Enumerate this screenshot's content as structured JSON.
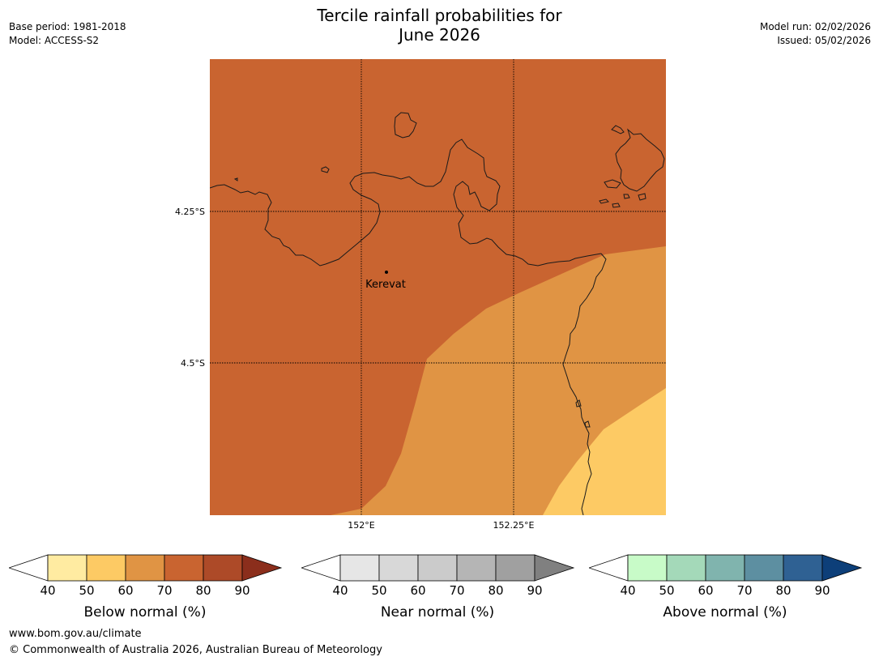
{
  "header": {
    "title_line1": "Tercile rainfall probabilities for",
    "title_line2": "June 2026",
    "base_period": "Base period: 1981-2018",
    "model": "Model: ACCESS-S2",
    "model_run": "Model run: 02/02/2026",
    "issued": "Issued: 05/02/2026"
  },
  "map": {
    "lat_labels": [
      "4.25°S",
      "4.5°S"
    ],
    "lon_labels": [
      "152°E",
      "152.25°E"
    ],
    "place": "Kerevat",
    "colors": {
      "below_70_80": "#c96430",
      "below_60_70": "#e09444",
      "below_50_60": "#fdca64",
      "coast": "#1a1a1a"
    }
  },
  "legends": [
    {
      "label": "Below normal (%)",
      "ticks": [
        "40",
        "50",
        "60",
        "70",
        "80",
        "90"
      ],
      "colors": [
        "#ffeba1",
        "#fdca64",
        "#e09444",
        "#c96430",
        "#ad4a28",
        "#8b2e1c"
      ]
    },
    {
      "label": "Near normal (%)",
      "ticks": [
        "40",
        "50",
        "60",
        "70",
        "80",
        "90"
      ],
      "colors": [
        "#e6e6e6",
        "#d8d8d8",
        "#cbcbcb",
        "#b5b5b5",
        "#a0a0a0",
        "#808080"
      ]
    },
    {
      "label": "Above normal (%)",
      "ticks": [
        "40",
        "50",
        "60",
        "70",
        "80",
        "90"
      ],
      "colors": [
        "#c8fbc8",
        "#a4d9b9",
        "#80b4ae",
        "#5d8fa1",
        "#2f6193",
        "#0d3f79"
      ]
    }
  ],
  "footer": {
    "url": "www.bom.gov.au/climate",
    "copyright": "© Commonwealth of Australia 2026, Australian Bureau of Meteorology"
  }
}
